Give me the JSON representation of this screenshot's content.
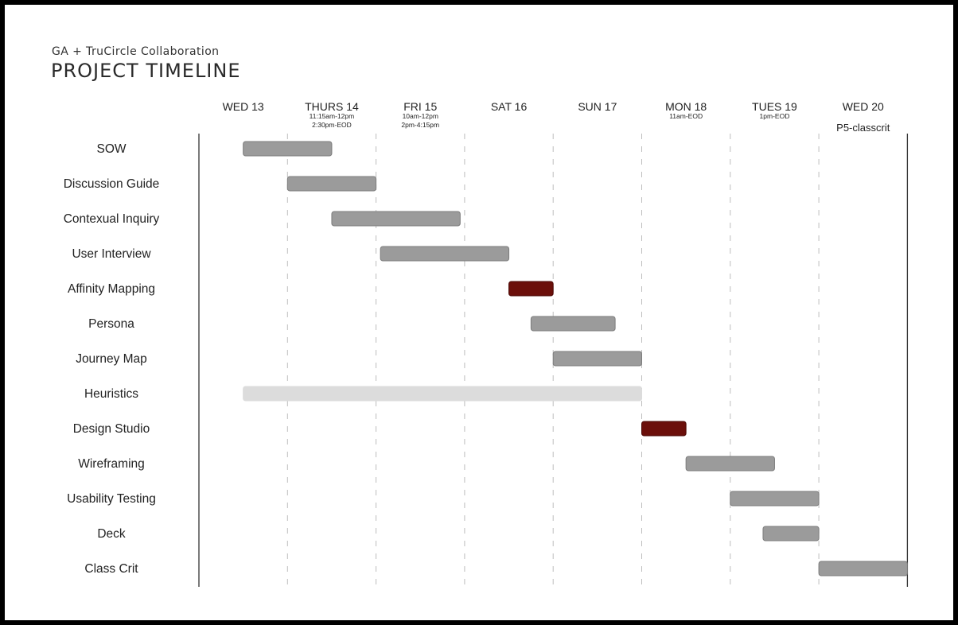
{
  "header": {
    "subtitle": "GA + TruCircle Collaboration",
    "title": "PROJECT TIMELINE"
  },
  "colors": {
    "task_default": "#9b9b9b",
    "task_highlight": "#6b0f0a",
    "task_light": "#dcdcdc",
    "gridline": "#bdbdbd",
    "axis": "#333333"
  },
  "chart_data": {
    "type": "gantt",
    "title": "PROJECT TIMELINE",
    "days": [
      {
        "label": "WED 13",
        "notes": []
      },
      {
        "label": "THURS 14",
        "notes": [
          "11:15am-12pm",
          "2:30pm-EOD"
        ]
      },
      {
        "label": "FRI 15",
        "notes": [
          "10am-12pm",
          "2pm-4:15pm"
        ]
      },
      {
        "label": "SAT 16",
        "notes": []
      },
      {
        "label": "SUN 17",
        "notes": []
      },
      {
        "label": "MON 18",
        "notes": [
          "11am-EOD"
        ]
      },
      {
        "label": "TUES 19",
        "notes": [
          "1pm-EOD"
        ]
      },
      {
        "label": "WED 20",
        "notes": [
          "P5-classcrit"
        ]
      }
    ],
    "tasks": [
      {
        "name": "SOW",
        "start": 0.5,
        "end": 1.5,
        "style": "default"
      },
      {
        "name": "Discussion Guide",
        "start": 1.0,
        "end": 2.0,
        "style": "default"
      },
      {
        "name": "Contexual Inquiry",
        "start": 1.5,
        "end": 2.95,
        "style": "default"
      },
      {
        "name": "User Interview",
        "start": 2.05,
        "end": 3.5,
        "style": "default"
      },
      {
        "name": "Affinity Mapping",
        "start": 3.5,
        "end": 4.0,
        "style": "highlight"
      },
      {
        "name": "Persona",
        "start": 3.75,
        "end": 4.7,
        "style": "default"
      },
      {
        "name": "Journey Map",
        "start": 4.0,
        "end": 5.0,
        "style": "default"
      },
      {
        "name": "Heuristics",
        "start": 0.5,
        "end": 5.0,
        "style": "light"
      },
      {
        "name": "Design Studio",
        "start": 5.0,
        "end": 5.5,
        "style": "highlight"
      },
      {
        "name": "Wireframing",
        "start": 5.5,
        "end": 6.5,
        "style": "default"
      },
      {
        "name": "Usability Testing",
        "start": 6.0,
        "end": 7.0,
        "style": "default"
      },
      {
        "name": "Deck",
        "start": 6.37,
        "end": 7.0,
        "style": "default"
      },
      {
        "name": "Class Crit",
        "start": 7.0,
        "end": 8.0,
        "style": "default"
      }
    ],
    "xlim": [
      0,
      8
    ],
    "grid": true
  }
}
